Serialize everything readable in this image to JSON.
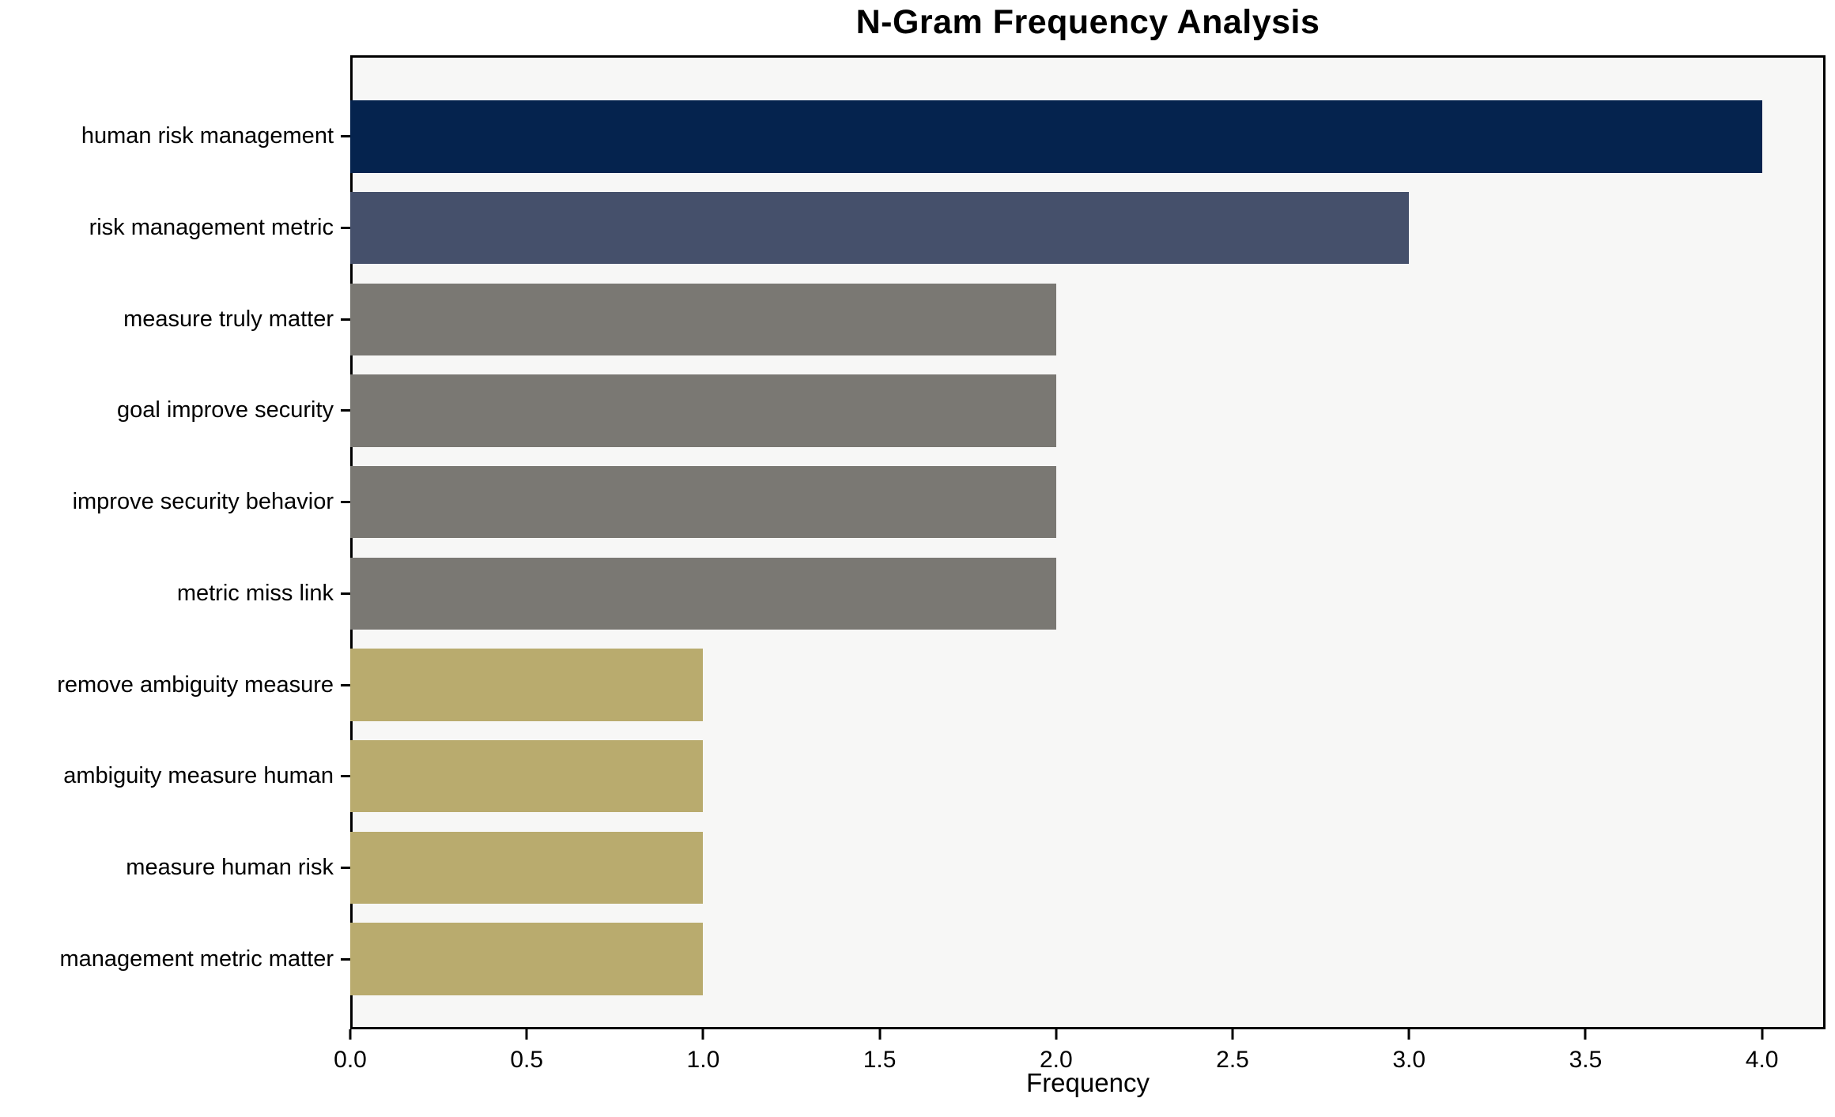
{
  "chart_data": {
    "type": "bar",
    "orientation": "horizontal",
    "title": "N-Gram Frequency Analysis",
    "xlabel": "Frequency",
    "ylabel": "",
    "categories": [
      "human risk management",
      "risk management metric",
      "measure truly matter",
      "goal improve security",
      "improve security behavior",
      "metric miss link",
      "remove ambiguity measure",
      "ambiguity measure human",
      "measure human risk",
      "management metric matter"
    ],
    "values": [
      4,
      3,
      2,
      2,
      2,
      2,
      1,
      1,
      1,
      1
    ],
    "bar_colors": [
      "#05234e",
      "#45506b",
      "#7a7873",
      "#7a7873",
      "#7a7873",
      "#7a7873",
      "#b9ab6e",
      "#b9ab6e",
      "#b9ab6e",
      "#b9ab6e"
    ],
    "xlim": [
      0,
      4.18
    ],
    "xticks": [
      {
        "value": 0.0,
        "label": "0.0"
      },
      {
        "value": 0.5,
        "label": "0.5"
      },
      {
        "value": 1.0,
        "label": "1.0"
      },
      {
        "value": 1.5,
        "label": "1.5"
      },
      {
        "value": 2.0,
        "label": "2.0"
      },
      {
        "value": 2.5,
        "label": "2.5"
      },
      {
        "value": 3.0,
        "label": "3.0"
      },
      {
        "value": 3.5,
        "label": "3.5"
      },
      {
        "value": 4.0,
        "label": "4.0"
      }
    ],
    "grid": false,
    "legend": false,
    "plot_background": "#f7f7f6",
    "figure_background": "#ffffff",
    "axis_color": "#000000"
  }
}
